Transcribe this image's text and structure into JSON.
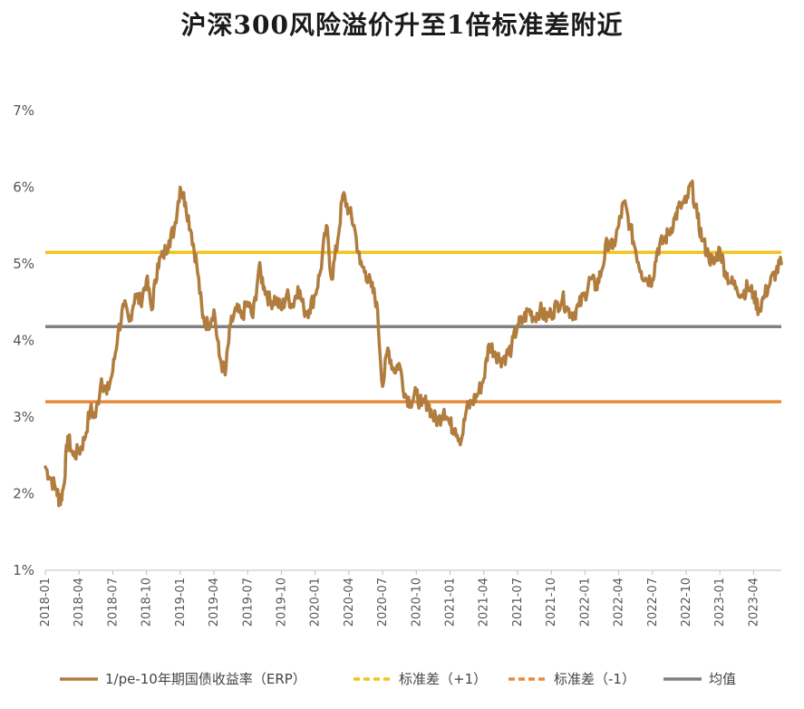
{
  "title": "沪深300风险溢价升至1倍标准差附近",
  "chart_data": {
    "type": "line",
    "title": "沪深300风险溢价升至1倍标准差附近",
    "xlabel": "",
    "ylabel": "",
    "ylim": [
      1,
      7
    ],
    "yticks": [
      "1%",
      "2%",
      "3%",
      "4%",
      "5%",
      "6%",
      "7%"
    ],
    "xticks": [
      "2018-01",
      "2018-04",
      "2018-07",
      "2018-10",
      "2019-01",
      "2019-04",
      "2019-07",
      "2019-10",
      "2020-01",
      "2020-04",
      "2020-07",
      "2020-10",
      "2021-01",
      "2021-04",
      "2021-07",
      "2021-10",
      "2022-01",
      "2022-04",
      "2022-07",
      "2022-10",
      "2023-01",
      "2023-04"
    ],
    "x_start": "2018-01",
    "legend_position": "bottom",
    "series": [
      {
        "name": "1/pe-10年期国债收益率（ERP）",
        "color": "#b07d3e",
        "style": "solid",
        "points": [
          [
            "2018-01",
            2.35
          ],
          [
            "2018-01-15",
            2.2
          ],
          [
            "2018-02",
            2.05
          ],
          [
            "2018-02-10",
            1.88
          ],
          [
            "2018-02-20",
            2.1
          ],
          [
            "2018-03",
            2.75
          ],
          [
            "2018-03-15",
            2.5
          ],
          [
            "2018-04",
            2.55
          ],
          [
            "2018-04-15",
            2.7
          ],
          [
            "2018-05",
            3.1
          ],
          [
            "2018-05-15",
            3.0
          ],
          [
            "2018-06",
            3.5
          ],
          [
            "2018-06-15",
            3.3
          ],
          [
            "2018-07",
            3.6
          ],
          [
            "2018-07-15",
            4.1
          ],
          [
            "2018-08",
            4.45
          ],
          [
            "2018-08-15",
            4.25
          ],
          [
            "2018-09",
            4.6
          ],
          [
            "2018-09-15",
            4.5
          ],
          [
            "2018-10",
            4.8
          ],
          [
            "2018-10-15",
            4.4
          ],
          [
            "2018-11",
            5.0
          ],
          [
            "2018-11-15",
            5.1
          ],
          [
            "2018-12",
            5.3
          ],
          [
            "2018-12-15",
            5.45
          ],
          [
            "2019-01",
            6.0
          ],
          [
            "2019-01-15",
            5.8
          ],
          [
            "2019-02",
            5.4
          ],
          [
            "2019-02-15",
            5.0
          ],
          [
            "2019-03",
            4.3
          ],
          [
            "2019-03-15",
            4.2
          ],
          [
            "2019-04",
            4.4
          ],
          [
            "2019-04-15",
            3.8
          ],
          [
            "2019-05",
            3.55
          ],
          [
            "2019-05-15",
            4.2
          ],
          [
            "2019-06",
            4.4
          ],
          [
            "2019-06-15",
            4.3
          ],
          [
            "2019-07",
            4.5
          ],
          [
            "2019-07-15",
            4.3
          ],
          [
            "2019-08",
            4.95
          ],
          [
            "2019-08-15",
            4.7
          ],
          [
            "2019-09",
            4.5
          ],
          [
            "2019-09-15",
            4.55
          ],
          [
            "2019-10",
            4.4
          ],
          [
            "2019-10-15",
            4.6
          ],
          [
            "2019-11",
            4.45
          ],
          [
            "2019-11-15",
            4.7
          ],
          [
            "2019-12",
            4.4
          ],
          [
            "2019-12-15",
            4.4
          ],
          [
            "2020-01",
            4.6
          ],
          [
            "2020-01-15",
            4.9
          ],
          [
            "2020-02",
            5.5
          ],
          [
            "2020-02-15",
            4.8
          ],
          [
            "2020-03",
            5.3
          ],
          [
            "2020-03-15",
            5.9
          ],
          [
            "2020-04",
            5.7
          ],
          [
            "2020-04-15",
            5.5
          ],
          [
            "2020-05",
            5.0
          ],
          [
            "2020-05-15",
            4.9
          ],
          [
            "2020-06",
            4.7
          ],
          [
            "2020-06-15",
            4.5
          ],
          [
            "2020-07",
            3.4
          ],
          [
            "2020-07-15",
            3.9
          ],
          [
            "2020-08",
            3.6
          ],
          [
            "2020-08-15",
            3.7
          ],
          [
            "2020-09",
            3.3
          ],
          [
            "2020-09-15",
            3.2
          ],
          [
            "2020-10",
            3.3
          ],
          [
            "2020-10-15",
            3.15
          ],
          [
            "2020-11",
            3.2
          ],
          [
            "2020-11-15",
            3.0
          ],
          [
            "2020-12",
            2.95
          ],
          [
            "2020-12-15",
            3.1
          ],
          [
            "2021-01",
            2.9
          ],
          [
            "2021-01-15",
            2.85
          ],
          [
            "2021-02",
            2.7
          ],
          [
            "2021-02-15",
            3.1
          ],
          [
            "2021-03",
            3.2
          ],
          [
            "2021-03-15",
            3.3
          ],
          [
            "2021-04",
            3.5
          ],
          [
            "2021-04-15",
            3.95
          ],
          [
            "2021-05",
            3.85
          ],
          [
            "2021-05-15",
            3.75
          ],
          [
            "2021-06",
            3.8
          ],
          [
            "2021-06-15",
            3.9
          ],
          [
            "2021-07",
            4.2
          ],
          [
            "2021-07-15",
            4.25
          ],
          [
            "2021-08",
            4.4
          ],
          [
            "2021-08-15",
            4.3
          ],
          [
            "2021-09",
            4.4
          ],
          [
            "2021-09-15",
            4.3
          ],
          [
            "2021-10",
            4.35
          ],
          [
            "2021-10-15",
            4.45
          ],
          [
            "2021-11",
            4.55
          ],
          [
            "2021-11-15",
            4.4
          ],
          [
            "2021-12",
            4.35
          ],
          [
            "2021-12-15",
            4.45
          ],
          [
            "2022-01",
            4.6
          ],
          [
            "2022-01-15",
            4.8
          ],
          [
            "2022-02",
            4.7
          ],
          [
            "2022-02-15",
            4.9
          ],
          [
            "2022-03",
            5.3
          ],
          [
            "2022-03-15",
            5.2
          ],
          [
            "2022-04",
            5.5
          ],
          [
            "2022-04-15",
            5.8
          ],
          [
            "2022-05",
            5.5
          ],
          [
            "2022-05-15",
            5.2
          ],
          [
            "2022-06",
            4.9
          ],
          [
            "2022-06-15",
            4.8
          ],
          [
            "2022-07",
            4.8
          ],
          [
            "2022-07-15",
            5.2
          ],
          [
            "2022-08",
            5.3
          ],
          [
            "2022-08-15",
            5.4
          ],
          [
            "2022-09",
            5.6
          ],
          [
            "2022-09-15",
            5.75
          ],
          [
            "2022-10",
            5.8
          ],
          [
            "2022-10-15",
            6.05
          ],
          [
            "2022-11",
            5.6
          ],
          [
            "2022-11-15",
            5.3
          ],
          [
            "2022-12",
            5.1
          ],
          [
            "2022-12-15",
            5.0
          ],
          [
            "2023-01",
            5.2
          ],
          [
            "2023-01-15",
            4.9
          ],
          [
            "2023-02",
            4.75
          ],
          [
            "2023-02-15",
            4.7
          ],
          [
            "2023-03",
            4.6
          ],
          [
            "2023-03-15",
            4.7
          ],
          [
            "2023-04",
            4.6
          ],
          [
            "2023-04-15",
            4.4
          ],
          [
            "2023-05",
            4.6
          ],
          [
            "2023-05-15",
            4.75
          ],
          [
            "2023-06",
            4.9
          ],
          [
            "2023-06-15",
            5.0
          ]
        ]
      },
      {
        "name": "标准差（+1）",
        "color": "#f2c318",
        "style": "dashed",
        "value": 5.15
      },
      {
        "name": "标准差（-1）",
        "color": "#e98a3a",
        "style": "dashed",
        "value": 3.2
      },
      {
        "name": "均值",
        "color": "#808080",
        "style": "solid",
        "value": 4.18
      }
    ]
  }
}
